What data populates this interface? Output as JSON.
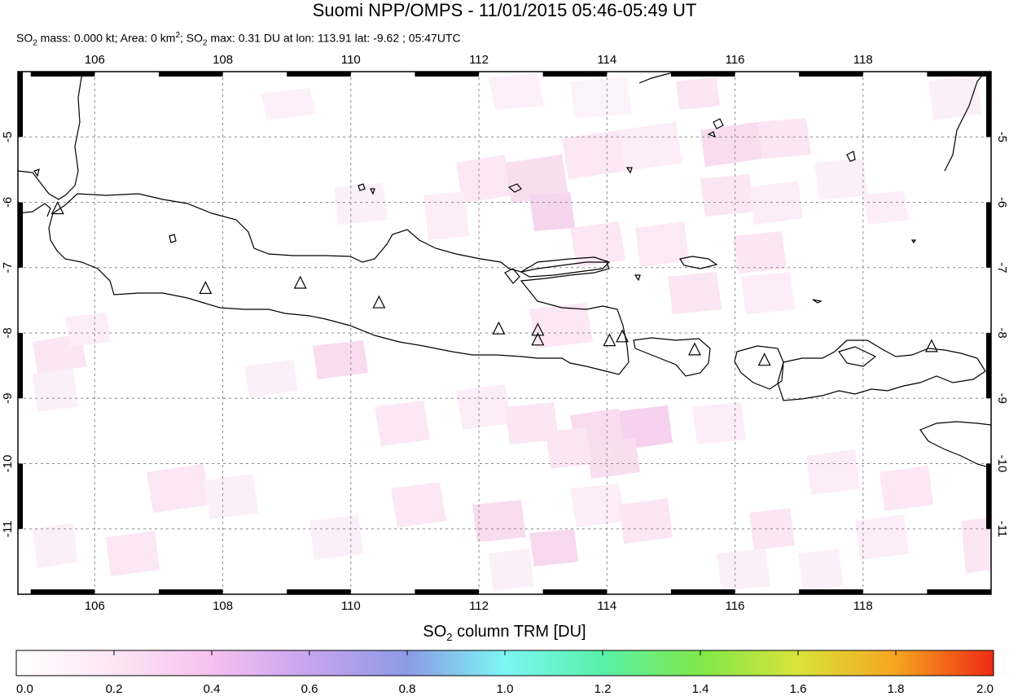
{
  "title": "Suomi NPP/OMPS - 11/01/2015 05:46-05:49 UT",
  "subtitle": {
    "so2_label": "SO",
    "sub2": "2",
    "mass_text": " mass: 0.000 kt; Area: 0 km",
    "sup2": "2",
    "sep": "; SO",
    "max_text": " max: 0.31 DU at lon: 113.91 lat: -9.62 ; 05:47UTC"
  },
  "map": {
    "lon_ticks": [
      "106",
      "108",
      "110",
      "112",
      "114",
      "116",
      "118"
    ],
    "lat_ticks": [
      "-5",
      "-6",
      "-7",
      "-8",
      "-9",
      "-10",
      "-11"
    ],
    "lon_range": [
      104.8,
      120.0
    ],
    "lat_range": [
      -12.0,
      -4.0
    ],
    "volcanoes": [
      {
        "lon": 105.42,
        "lat": -6.1
      },
      {
        "lon": 107.73,
        "lat": -7.32
      },
      {
        "lon": 109.21,
        "lat": -7.24
      },
      {
        "lon": 110.44,
        "lat": -7.54
      },
      {
        "lon": 112.31,
        "lat": -7.94
      },
      {
        "lon": 112.92,
        "lat": -7.96
      },
      {
        "lon": 112.92,
        "lat": -8.11
      },
      {
        "lon": 114.04,
        "lat": -8.12
      },
      {
        "lon": 114.24,
        "lat": -8.06
      },
      {
        "lon": 115.37,
        "lat": -8.26
      },
      {
        "lon": 116.46,
        "lat": -8.42
      },
      {
        "lon": 119.07,
        "lat": -8.21
      }
    ]
  },
  "colorbar": {
    "title_prefix": "SO",
    "title_sub": "2",
    "title_suffix": " column TRM [DU]",
    "ticks": [
      "0.0",
      "0.2",
      "0.4",
      "0.6",
      "0.8",
      "1.0",
      "1.2",
      "1.4",
      "1.6",
      "1.8",
      "2.0"
    ]
  }
}
